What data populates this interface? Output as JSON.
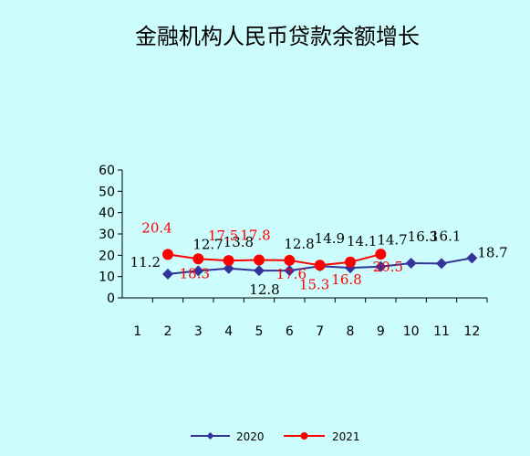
{
  "chart_data": {
    "type": "line",
    "title": "金融机构人民币贷款余额增长",
    "x": [
      "1",
      "2",
      "3",
      "4",
      "5",
      "6",
      "7",
      "8",
      "9",
      "10",
      "11",
      "12"
    ],
    "ylim": [
      0,
      60
    ],
    "yticks": [
      0,
      10,
      20,
      30,
      40,
      50,
      60
    ],
    "grid": false,
    "legend_position": "bottom",
    "series": [
      {
        "name": "2020",
        "color": "#333399",
        "marker": "diamond",
        "values": [
          null,
          11.2,
          12.7,
          13.8,
          12.8,
          12.8,
          14.9,
          14.1,
          14.7,
          16.3,
          16.1,
          18.7
        ],
        "labels": [
          null,
          "11.2",
          "12.7",
          "13.8",
          "12.8",
          "12.8",
          "14.9",
          "14.1",
          "14.7",
          "16.3",
          "16.1",
          "18.7"
        ]
      },
      {
        "name": "2021",
        "color": "#ff0000",
        "marker": "circle",
        "values": [
          null,
          20.4,
          18.3,
          17.5,
          17.8,
          17.6,
          15.3,
          16.8,
          20.5,
          null,
          null,
          null
        ],
        "labels": [
          null,
          "20.4",
          "18.3",
          "17.5",
          "17.8",
          "17.6",
          "15.3",
          "16.8",
          "20.5",
          null,
          null,
          null
        ]
      }
    ]
  }
}
